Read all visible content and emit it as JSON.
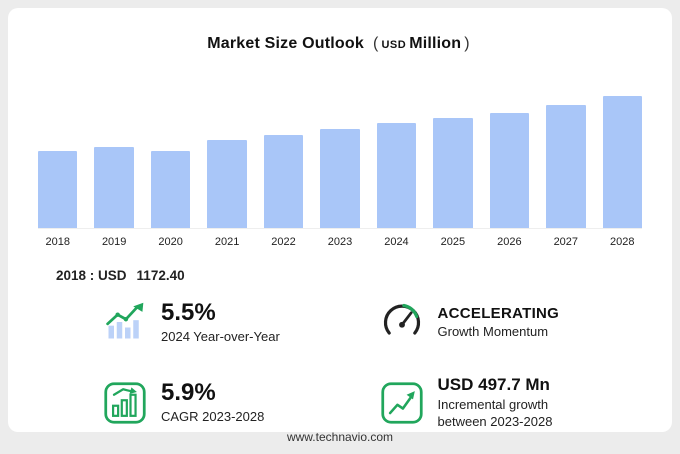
{
  "title": {
    "main": "Market Size Outlook",
    "paren_left": "(",
    "currency": "USD",
    "unit": "Million",
    "paren_right": ")"
  },
  "chart_data": {
    "type": "bar",
    "title": "Market Size Outlook (USD Million)",
    "categories": [
      "2018",
      "2019",
      "2020",
      "2021",
      "2022",
      "2023",
      "2024",
      "2025",
      "2026",
      "2027",
      "2028"
    ],
    "values": [
      1172.4,
      1230,
      1161,
      1335,
      1400,
      1500,
      1582.5,
      1660,
      1735,
      1855,
      1997.7
    ],
    "xlabel": "",
    "ylabel": "USD Million",
    "ylim": [
      0,
      2000
    ],
    "grid": false,
    "legend": "none"
  },
  "annotation": {
    "prefix": "2018 : USD",
    "value": "1172.40"
  },
  "stats": [
    {
      "id": "yoy",
      "icon": "bars-up-arrow-icon",
      "value": "5.5%",
      "label": "2024 Year-over-Year"
    },
    {
      "id": "momentum",
      "icon": "gauge-icon",
      "value": "ACCELERATING",
      "label": "Growth Momentum"
    },
    {
      "id": "cagr",
      "icon": "bar-chart-icon",
      "value": "5.9%",
      "label": "CAGR 2023-2028"
    },
    {
      "id": "incremental",
      "icon": "line-chart-icon",
      "value": "USD 497.7 Mn",
      "label": "Incremental growth between 2023-2028"
    }
  ],
  "footer": {
    "url": "www.technavio.com"
  },
  "colors": {
    "bar_fill": "#a9c6f8",
    "accent_green": "#21a65c",
    "gauge_dark": "#222222",
    "text_dark": "#111111"
  }
}
